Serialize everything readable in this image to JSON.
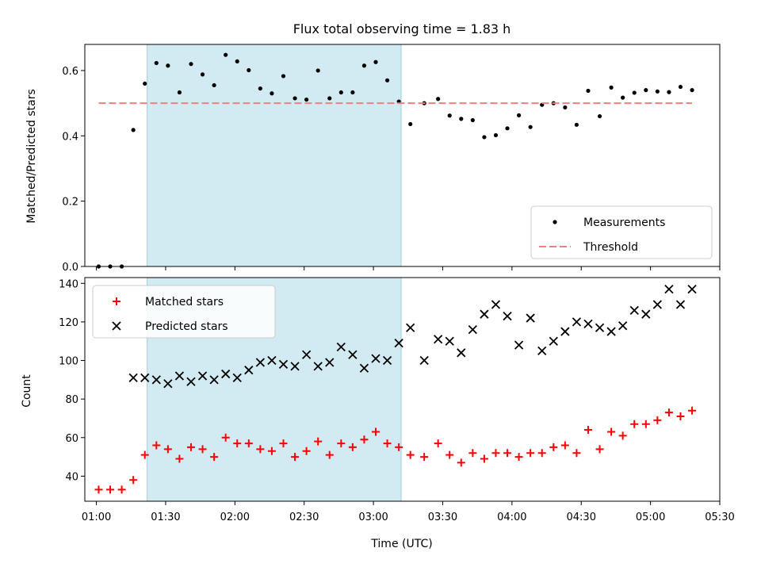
{
  "chart_data": {
    "type": "scatter",
    "title": "Flux total observing time = 1.83 h",
    "xlabel": "Time (UTC)",
    "x_ticks": [
      "01:00",
      "01:30",
      "02:00",
      "02:30",
      "03:00",
      "03:30",
      "04:00",
      "04:30",
      "05:00",
      "05:30"
    ],
    "xlim": [
      "00:55",
      "05:30"
    ],
    "shaded_interval": {
      "start": "01:22",
      "end": "03:12",
      "color": "#add8e6"
    },
    "panels": [
      {
        "ylabel": "Matched/Predicted stars",
        "ylim": [
          0,
          0.68
        ],
        "y_ticks": [
          "0.0",
          "0.2",
          "0.4",
          "0.6"
        ],
        "legend_position": "lower-right",
        "series": [
          {
            "name": "Measurements",
            "marker": "dot",
            "color": "#000000",
            "points": [
              [
                "01:01",
                0.0
              ],
              [
                "01:06",
                0.0
              ],
              [
                "01:11",
                0.0
              ],
              [
                "01:16",
                0.418
              ],
              [
                "01:21",
                0.56
              ],
              [
                "01:26",
                0.623
              ],
              [
                "01:31",
                0.615
              ],
              [
                "01:36",
                0.533
              ],
              [
                "01:41",
                0.62
              ],
              [
                "01:46",
                0.588
              ],
              [
                "01:51",
                0.555
              ],
              [
                "01:56",
                0.648
              ],
              [
                "02:01",
                0.628
              ],
              [
                "02:06",
                0.601
              ],
              [
                "02:11",
                0.545
              ],
              [
                "02:16",
                0.53
              ],
              [
                "02:21",
                0.583
              ],
              [
                "02:26",
                0.515
              ],
              [
                "02:31",
                0.511
              ],
              [
                "02:36",
                0.6
              ],
              [
                "02:41",
                0.515
              ],
              [
                "02:46",
                0.533
              ],
              [
                "02:51",
                0.533
              ],
              [
                "02:56",
                0.615
              ],
              [
                "03:01",
                0.626
              ],
              [
                "03:06",
                0.57
              ],
              [
                "03:11",
                0.505
              ],
              [
                "03:16",
                0.436
              ],
              [
                "03:22",
                0.5
              ],
              [
                "03:28",
                0.513
              ],
              [
                "03:33",
                0.462
              ],
              [
                "03:38",
                0.452
              ],
              [
                "03:43",
                0.448
              ],
              [
                "03:48",
                0.396
              ],
              [
                "03:53",
                0.402
              ],
              [
                "03:58",
                0.423
              ],
              [
                "04:03",
                0.463
              ],
              [
                "04:08",
                0.427
              ],
              [
                "04:13",
                0.495
              ],
              [
                "04:18",
                0.5
              ],
              [
                "04:23",
                0.487
              ],
              [
                "04:28",
                0.434
              ],
              [
                "04:33",
                0.538
              ],
              [
                "04:38",
                0.46
              ],
              [
                "04:43",
                0.548
              ],
              [
                "04:48",
                0.517
              ],
              [
                "04:53",
                0.532
              ],
              [
                "04:58",
                0.54
              ],
              [
                "05:03",
                0.536
              ],
              [
                "05:08",
                0.534
              ],
              [
                "05:13",
                0.55
              ],
              [
                "05:18",
                0.54
              ]
            ]
          },
          {
            "name": "Threshold",
            "marker": "dashed-line",
            "color": "#f08080",
            "points": [
              [
                "01:01",
                0.5
              ],
              [
                "05:18",
                0.5
              ]
            ]
          }
        ]
      },
      {
        "ylabel": "Count",
        "ylim": [
          27,
          143
        ],
        "y_ticks": [
          "40",
          "60",
          "80",
          "100",
          "120",
          "140"
        ],
        "legend_position": "upper-left",
        "series": [
          {
            "name": "Matched stars",
            "marker": "plus",
            "color": "#ff0000",
            "points": [
              [
                "01:01",
                33
              ],
              [
                "01:06",
                33
              ],
              [
                "01:11",
                33
              ],
              [
                "01:16",
                38
              ],
              [
                "01:21",
                51
              ],
              [
                "01:26",
                56
              ],
              [
                "01:31",
                54
              ],
              [
                "01:36",
                49
              ],
              [
                "01:41",
                55
              ],
              [
                "01:46",
                54
              ],
              [
                "01:51",
                50
              ],
              [
                "01:56",
                60
              ],
              [
                "02:01",
                57
              ],
              [
                "02:06",
                57
              ],
              [
                "02:11",
                54
              ],
              [
                "02:16",
                53
              ],
              [
                "02:21",
                57
              ],
              [
                "02:26",
                50
              ],
              [
                "02:31",
                53
              ],
              [
                "02:36",
                58
              ],
              [
                "02:41",
                51
              ],
              [
                "02:46",
                57
              ],
              [
                "02:51",
                55
              ],
              [
                "02:56",
                59
              ],
              [
                "03:01",
                63
              ],
              [
                "03:06",
                57
              ],
              [
                "03:11",
                55
              ],
              [
                "03:16",
                51
              ],
              [
                "03:22",
                50
              ],
              [
                "03:28",
                57
              ],
              [
                "03:33",
                51
              ],
              [
                "03:38",
                47
              ],
              [
                "03:43",
                52
              ],
              [
                "03:48",
                49
              ],
              [
                "03:53",
                52
              ],
              [
                "03:58",
                52
              ],
              [
                "04:03",
                50
              ],
              [
                "04:08",
                52
              ],
              [
                "04:13",
                52
              ],
              [
                "04:18",
                55
              ],
              [
                "04:23",
                56
              ],
              [
                "04:28",
                52
              ],
              [
                "04:33",
                64
              ],
              [
                "04:38",
                54
              ],
              [
                "04:43",
                63
              ],
              [
                "04:48",
                61
              ],
              [
                "04:53",
                67
              ],
              [
                "04:58",
                67
              ],
              [
                "05:03",
                69
              ],
              [
                "05:08",
                73
              ],
              [
                "05:13",
                71
              ],
              [
                "05:18",
                74
              ]
            ]
          },
          {
            "name": "Predicted stars",
            "marker": "x",
            "color": "#000000",
            "points": [
              [
                "01:16",
                91
              ],
              [
                "01:21",
                91
              ],
              [
                "01:26",
                90
              ],
              [
                "01:31",
                88
              ],
              [
                "01:36",
                92
              ],
              [
                "01:41",
                89
              ],
              [
                "01:46",
                92
              ],
              [
                "01:51",
                90
              ],
              [
                "01:56",
                93
              ],
              [
                "02:01",
                91
              ],
              [
                "02:06",
                95
              ],
              [
                "02:11",
                99
              ],
              [
                "02:16",
                100
              ],
              [
                "02:21",
                98
              ],
              [
                "02:26",
                97
              ],
              [
                "02:31",
                103
              ],
              [
                "02:36",
                97
              ],
              [
                "02:41",
                99
              ],
              [
                "02:46",
                107
              ],
              [
                "02:51",
                103
              ],
              [
                "02:56",
                96
              ],
              [
                "03:01",
                101
              ],
              [
                "03:06",
                100
              ],
              [
                "03:11",
                109
              ],
              [
                "03:16",
                117
              ],
              [
                "03:22",
                100
              ],
              [
                "03:28",
                111
              ],
              [
                "03:33",
                110
              ],
              [
                "03:38",
                104
              ],
              [
                "03:43",
                116
              ],
              [
                "03:48",
                124
              ],
              [
                "03:53",
                129
              ],
              [
                "03:58",
                123
              ],
              [
                "04:03",
                108
              ],
              [
                "04:08",
                122
              ],
              [
                "04:13",
                105
              ],
              [
                "04:18",
                110
              ],
              [
                "04:23",
                115
              ],
              [
                "04:28",
                120
              ],
              [
                "04:33",
                119
              ],
              [
                "04:38",
                117
              ],
              [
                "04:43",
                115
              ],
              [
                "04:48",
                118
              ],
              [
                "04:53",
                126
              ],
              [
                "04:58",
                124
              ],
              [
                "05:03",
                129
              ],
              [
                "05:08",
                137
              ],
              [
                "05:13",
                129
              ],
              [
                "05:18",
                137
              ]
            ]
          }
        ]
      }
    ]
  }
}
